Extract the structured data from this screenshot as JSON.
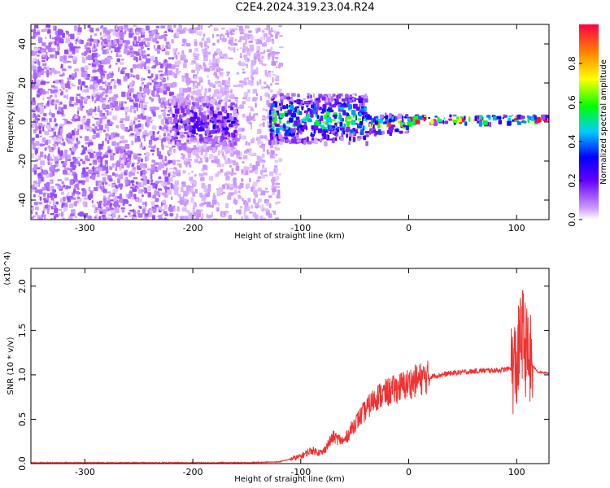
{
  "title": "C2E4.2024.319.23.04.R24",
  "colors": {
    "snr_line": "#ee3333",
    "frame": "#000000",
    "background": "#ffffff"
  },
  "chart_data": [
    {
      "type": "heatmap",
      "xlabel": "Height of straight line (km)",
      "ylabel": "Frequency (Hz)",
      "xlim": [
        -350,
        130
      ],
      "ylim": [
        -50,
        50
      ],
      "xticks": [
        "-300",
        "-200",
        "-100",
        "0",
        "100"
      ],
      "yticks": [
        "-40",
        "-20",
        "0",
        "20",
        "40"
      ],
      "colorbar": {
        "label": "Normalized spectral amplitude",
        "range": [
          0,
          1
        ],
        "ticks": [
          "0.0",
          "0.2",
          "0.4",
          "0.6",
          "0.8"
        ],
        "colormap": "rainbow (violet-low, red-high)"
      },
      "regions": [
        {
          "x": [
            -350,
            -220
          ],
          "freq": [
            -50,
            50
          ],
          "amplitude": 0.1,
          "pattern": "broadband noise"
        },
        {
          "x": [
            -220,
            -120
          ],
          "freq": [
            -50,
            50
          ],
          "amplitude": 0.05,
          "pattern": "sparse broadband noise"
        },
        {
          "x": [
            -220,
            -160
          ],
          "freq": [
            -15,
            15
          ],
          "amplitude": 0.2,
          "pattern": "blob centered near 0 Hz"
        },
        {
          "x": [
            -130,
            -40
          ],
          "freq": [
            -10,
            15
          ],
          "amplitude": 0.45,
          "pattern": "narrowing band near 0 Hz"
        },
        {
          "x": [
            -40,
            0
          ],
          "freq": [
            -5,
            5
          ],
          "amplitude": 0.6,
          "pattern": "line near 0 Hz"
        },
        {
          "x": [
            0,
            130
          ],
          "freq": [
            0,
            4
          ],
          "amplitude": 0.95,
          "pattern": "strong line near +2 Hz"
        }
      ]
    },
    {
      "type": "line",
      "xlabel": "Height of straight line (km)",
      "ylabel": "SNR (10 * v/v)",
      "y_multiplier": "(x10^4)",
      "xlim": [
        -350,
        130
      ],
      "ylim": [
        0,
        2.2
      ],
      "xticks": [
        "-300",
        "-200",
        "-100",
        "0",
        "100"
      ],
      "yticks": [
        "0.0",
        "0.5",
        "1.0",
        "1.5",
        "2.0"
      ],
      "series": [
        {
          "x": [
            -350,
            -300,
            -250,
            -200,
            -150,
            -120,
            -100,
            -90,
            -80,
            -70,
            -60,
            -50,
            -40,
            -30,
            -20,
            -10,
            0,
            10,
            20,
            30,
            40,
            50,
            60,
            70,
            80,
            90,
            100,
            105,
            110,
            115,
            120,
            130
          ],
          "y": [
            0.01,
            0.01,
            0.01,
            0.01,
            0.01,
            0.02,
            0.08,
            0.15,
            0.12,
            0.3,
            0.25,
            0.45,
            0.6,
            0.75,
            0.8,
            0.85,
            0.9,
            0.95,
            0.98,
            1.0,
            1.02,
            1.03,
            1.04,
            1.05,
            1.05,
            1.06,
            1.1,
            1.5,
            1.2,
            1.1,
            1.03,
            1.02
          ]
        }
      ]
    }
  ]
}
